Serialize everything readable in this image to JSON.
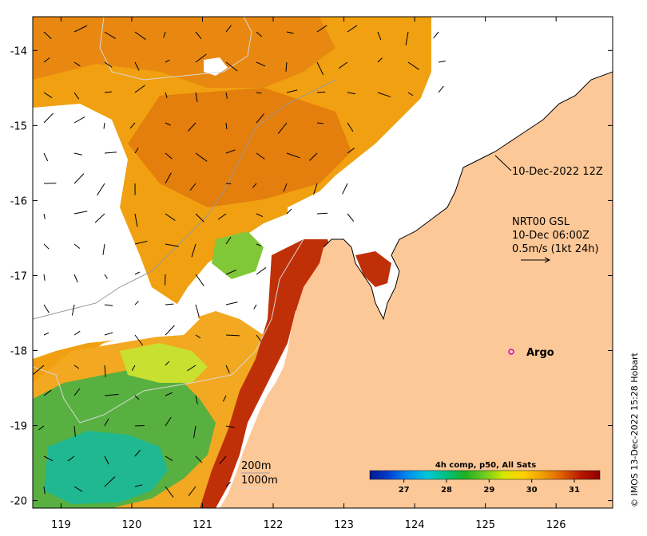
{
  "map": {
    "lon_ticks": [
      "119",
      "120",
      "121",
      "122",
      "123",
      "124",
      "125",
      "126"
    ],
    "lat_ticks": [
      "-14",
      "-15",
      "-16",
      "-17",
      "-18",
      "-19",
      "-20"
    ],
    "lon_range": [
      118.6,
      126.8
    ],
    "lat_range": [
      -20.1,
      -13.55
    ],
    "colors": {
      "land": "#fdc897",
      "cloud": "#ffffff",
      "frame": "#000000",
      "current_vector": "#000000",
      "contour_200m": "#9a9a9a",
      "contour_1000m": "#d8d8d8",
      "argo_marker": "#d400d4"
    }
  },
  "annotations": {
    "sst_time": "10-Dec-2022 12Z",
    "current_line1": "NRT00 GSL",
    "current_line2": "10-Dec 06:00Z",
    "current_line3": "0.5m/s (1kt 24h)",
    "argo_label": "Argo",
    "contour_200": "200m",
    "contour_1000": "1000m",
    "credit": "© IMOS 13-Dec-2022 15:28 Hobart"
  },
  "colorbar": {
    "title": "4h comp, p50, All Sats",
    "ticks": [
      "27",
      "28",
      "29",
      "30",
      "31"
    ],
    "min": 26.2,
    "max": 31.6,
    "stops": [
      "#001a8f",
      "#0040d0",
      "#0090f0",
      "#00c8d8",
      "#00c080",
      "#20b020",
      "#70cc20",
      "#d8e800",
      "#ffd000",
      "#f0a000",
      "#e06000",
      "#b81800",
      "#900000"
    ]
  }
}
